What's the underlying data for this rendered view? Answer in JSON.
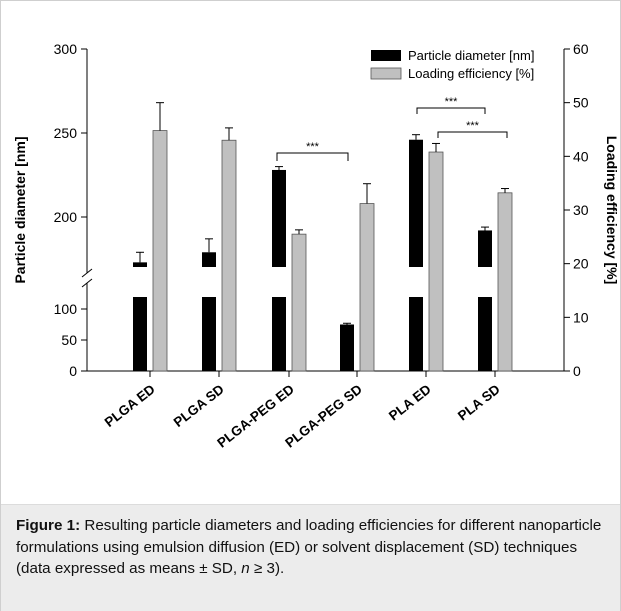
{
  "chart_data": {
    "type": "bar",
    "categories": [
      "PLGA ED",
      "PLGA SD",
      "PLGA-PEG ED",
      "PLGA-PEG SD",
      "PLA ED",
      "PLA SD"
    ],
    "series": [
      {
        "name": "Particle diameter [nm]",
        "axis": "left",
        "color": "#000000",
        "values": [
          173,
          179,
          228,
          75,
          246,
          192
        ],
        "errors": [
          6,
          8,
          2,
          2,
          3,
          2
        ]
      },
      {
        "name": "Loading efficiency [%]",
        "axis": "right",
        "color": "#c0c0c0",
        "values": [
          44.8,
          43.0,
          25.5,
          31.2,
          40.8,
          33.2
        ],
        "errors": [
          5.2,
          2.3,
          0.8,
          3.7,
          1.6,
          0.8
        ]
      }
    ],
    "ylabel_left": "Particle diameter [nm]",
    "ylabel_right": "Loading efficiency [%]",
    "left_axis": {
      "segments": [
        {
          "range": [
            0,
            100
          ],
          "ticks": [
            0,
            50,
            100
          ]
        },
        {
          "range": [
            150,
            300
          ],
          "ticks": [
            200,
            250,
            300
          ]
        }
      ],
      "axis_break": true
    },
    "right_axis": {
      "range": [
        0,
        60
      ],
      "ticks": [
        0,
        10,
        20,
        30,
        40,
        50,
        60
      ]
    },
    "legend_position": "top-right",
    "significance": [
      {
        "from": "PLGA-PEG ED",
        "to": "PLGA-PEG SD",
        "label": "***"
      },
      {
        "from": "PLA ED",
        "to": "PLA SD",
        "label": "***"
      },
      {
        "from": "PLA ED",
        "to": "PLA SD",
        "label": "***"
      }
    ]
  },
  "caption": {
    "label": "Figure 1:",
    "text": " Resulting particle diameters and loading efficiencies for different nanoparticle formulations using emulsion diffusion (ED) or solvent displacement (SD) techniques (data expressed as means ± SD, ",
    "n_symbol": "n",
    "tail": " ≥ 3)."
  }
}
